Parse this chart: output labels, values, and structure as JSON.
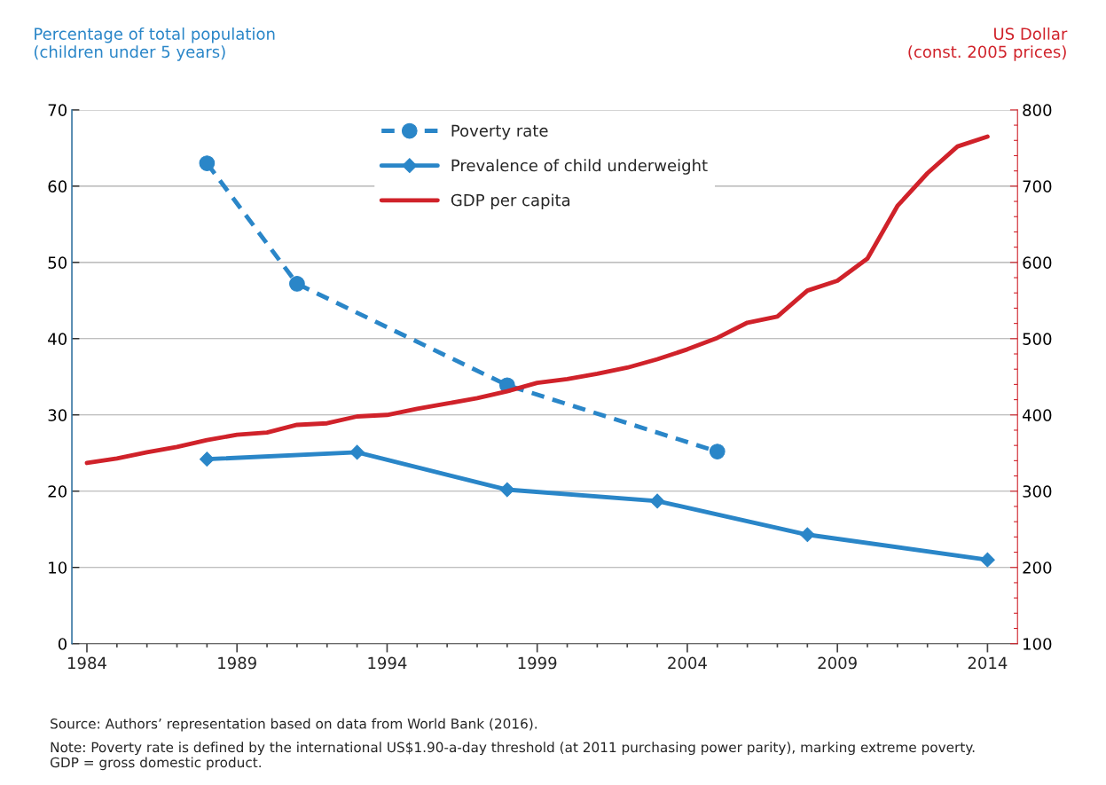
{
  "chart_data": {
    "type": "line",
    "ylabel": "Percentage of total population\n(children under 5 years)",
    "y2label": "US Dollar\n(const. 2005 prices)",
    "xlim": [
      1983.5,
      2015
    ],
    "xticks": [
      1984,
      {
        "value": 1985,
        "label": null
      },
      {
        "value": 1986,
        "label": null
      },
      {
        "value": 1987,
        "label": null
      },
      {
        "value": 1988,
        "label": null
      },
      1989,
      {
        "value": 1990,
        "label": null
      },
      {
        "value": 1991,
        "label": null
      },
      {
        "value": 1992,
        "label": null
      },
      {
        "value": 1993,
        "label": null
      },
      1994,
      {
        "value": 1995,
        "label": null
      },
      {
        "value": 1996,
        "label": null
      },
      {
        "value": 1997,
        "label": null
      },
      {
        "value": 1998,
        "label": null
      },
      1999,
      {
        "value": 2000,
        "label": null
      },
      {
        "value": 2001,
        "label": null
      },
      {
        "value": 2002,
        "label": null
      },
      {
        "value": 2003,
        "label": null
      },
      2004,
      {
        "value": 2005,
        "label": null
      },
      {
        "value": 2006,
        "label": null
      },
      {
        "value": 2007,
        "label": null
      },
      {
        "value": 2008,
        "label": null
      },
      2009,
      {
        "value": 2010,
        "label": null
      },
      {
        "value": 2011,
        "label": null
      },
      {
        "value": 2012,
        "label": null
      },
      {
        "value": 2013,
        "label": null
      },
      2014
    ],
    "ylim": [
      0,
      70
    ],
    "yticks": [
      0,
      10,
      20,
      30,
      40,
      50,
      60,
      70
    ],
    "y2lim": [
      100,
      800
    ],
    "y2ticks": [
      100,
      {
        "value": 120,
        "label": null
      },
      {
        "value": 140,
        "label": null
      },
      {
        "value": 160,
        "label": null
      },
      {
        "value": 180,
        "label": null
      },
      200,
      {
        "value": 220,
        "label": null
      },
      {
        "value": 240,
        "label": null
      },
      {
        "value": 260,
        "label": null
      },
      {
        "value": 280,
        "label": null
      },
      300,
      {
        "value": 320,
        "label": null
      },
      {
        "value": 340,
        "label": null
      },
      {
        "value": 360,
        "label": null
      },
      {
        "value": 380,
        "label": null
      },
      400,
      {
        "value": 420,
        "label": null
      },
      {
        "value": 440,
        "label": null
      },
      {
        "value": 460,
        "label": null
      },
      {
        "value": 480,
        "label": null
      },
      500,
      {
        "value": 520,
        "label": null
      },
      {
        "value": 540,
        "label": null
      },
      {
        "value": 560,
        "label": null
      },
      {
        "value": 580,
        "label": null
      },
      600,
      {
        "value": 620,
        "label": null
      },
      {
        "value": 640,
        "label": null
      },
      {
        "value": 660,
        "label": null
      },
      {
        "value": 680,
        "label": null
      },
      700,
      {
        "value": 720,
        "label": null
      },
      {
        "value": 740,
        "label": null
      },
      {
        "value": 760,
        "label": null
      },
      {
        "value": 780,
        "label": null
      },
      800
    ],
    "grid": "y",
    "legend": "top",
    "series": [
      {
        "name": "Poverty rate",
        "color": "#2a86c8",
        "marker": "circle",
        "line_style": "dashed",
        "x": [
          1988,
          1991,
          1998,
          2005
        ],
        "values": [
          63,
          47.2,
          33.9,
          25.2
        ]
      },
      {
        "name": "Prevalence of child underweight",
        "color": "#2a86c8",
        "marker": "diamond",
        "line_style": "solid",
        "x": [
          1988,
          1993,
          1998,
          2003,
          2008,
          2014
        ],
        "values": [
          24.2,
          25.1,
          20.2,
          18.7,
          14.3,
          11.0
        ]
      },
      {
        "name": "GDP per capita",
        "color": "#d0222a",
        "marker": "none",
        "line_style": "solid",
        "axis": "y2",
        "x": [
          1984,
          1985,
          1986,
          1987,
          1988,
          1989,
          1990,
          1991,
          1992,
          1993,
          1994,
          1995,
          1996,
          1997,
          1998,
          1999,
          2000,
          2001,
          2002,
          2003,
          2004,
          2005,
          2006,
          2007,
          2008,
          2009,
          2010,
          2011,
          2012,
          2013,
          2014
        ],
        "values": [
          337,
          343,
          351,
          358,
          367,
          374,
          377,
          387,
          389,
          398,
          400,
          408,
          415,
          422,
          431,
          442,
          447,
          454,
          462,
          473,
          486,
          501,
          521,
          529,
          563,
          576,
          605,
          674,
          717,
          752,
          765
        ]
      }
    ],
    "annotations": [
      "Source: Authors’ representation based on data from World Bank (2016).",
      "Note: Poverty rate is defined by the international US$1.90-a-day threshold (at 2011 purchasing power parity), marking extreme poverty.\nGDP = gross domestic product."
    ]
  }
}
